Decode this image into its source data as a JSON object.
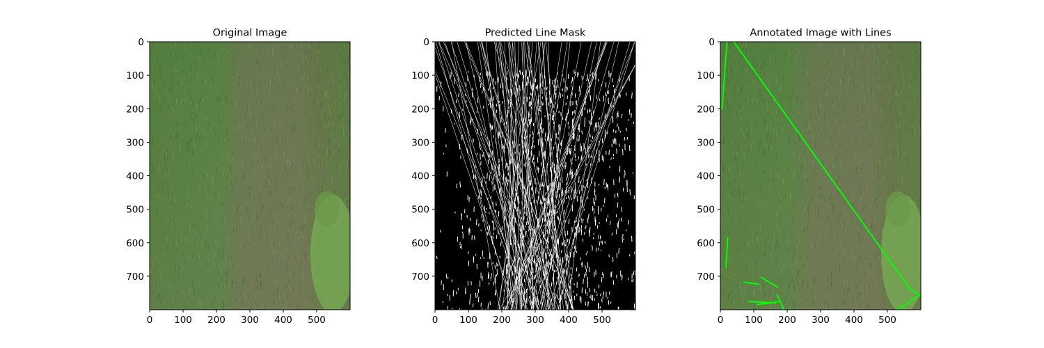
{
  "chart_data": [
    {
      "type": "image",
      "title": "Original Image",
      "xlim": [
        0,
        600
      ],
      "ylim": [
        800,
        0
      ],
      "xticks": [
        0,
        100,
        200,
        300,
        400,
        500
      ],
      "yticks": [
        0,
        100,
        200,
        300,
        400,
        500,
        600,
        700
      ],
      "content": "aerial grass field photo",
      "colors": {
        "grass_dark": "#4f7a40",
        "grass_mid": "#5d8248",
        "grass_dry": "#6f7a55",
        "grass_bright": "#7fa85a"
      }
    },
    {
      "type": "image",
      "title": "Predicted Line Mask",
      "xlim": [
        0,
        600
      ],
      "ylim": [
        800,
        0
      ],
      "xticks": [
        0,
        100,
        200,
        300,
        400,
        500
      ],
      "yticks": [
        0,
        100,
        200,
        300,
        400,
        500,
        600,
        700
      ],
      "content": "binary line mask, white line segments on black background",
      "colors": {
        "background": "#000000",
        "lines": "#ffffff"
      }
    },
    {
      "type": "image",
      "title": "Annotated Image with Lines",
      "xlim": [
        0,
        600
      ],
      "ylim": [
        800,
        0
      ],
      "xticks": [
        0,
        100,
        200,
        300,
        400,
        500
      ],
      "yticks": [
        0,
        100,
        200,
        300,
        400,
        500,
        600,
        700
      ],
      "content": "grass field photo with detected lines drawn in green",
      "line_color": "#00ff00",
      "line_segments": [
        {
          "x": [
            40,
            565
          ],
          "y": [
            0,
            735
          ]
        },
        {
          "x": [
            20,
            5
          ],
          "y": [
            0,
            200
          ]
        },
        {
          "x": [
            22,
            17
          ],
          "y": [
            585,
            675
          ]
        },
        {
          "x": [
            565,
            600
          ],
          "y": [
            735,
            760
          ]
        },
        {
          "x": [
            530,
            600
          ],
          "y": [
            800,
            755
          ]
        },
        {
          "x": [
            70,
            115
          ],
          "y": [
            718,
            724
          ]
        },
        {
          "x": [
            122,
            172
          ],
          "y": [
            703,
            733
          ]
        },
        {
          "x": [
            85,
            165
          ],
          "y": [
            775,
            780
          ]
        },
        {
          "x": [
            110,
            180
          ],
          "y": [
            785,
            775
          ]
        },
        {
          "x": [
            170,
            190
          ],
          "y": [
            755,
            800
          ]
        }
      ]
    }
  ]
}
